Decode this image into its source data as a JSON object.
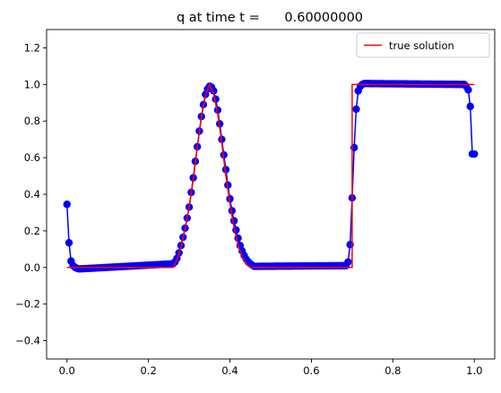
{
  "chart_data": {
    "type": "line",
    "title": "q at time t =      0.60000000",
    "xlabel": "",
    "ylabel": "",
    "xlim": [
      -0.05,
      1.05
    ],
    "ylim": [
      -0.5,
      1.3
    ],
    "grid": false,
    "legend_location": "upper right",
    "x_ticks": [
      "0.0",
      "0.2",
      "0.4",
      "0.6",
      "0.8",
      "1.0"
    ],
    "y_ticks": [
      "−0.4",
      "−0.2",
      "0.0",
      "0.2",
      "0.4",
      "0.6",
      "0.8",
      "1.0",
      "1.2"
    ],
    "x_tick_values": [
      0,
      0.2,
      0.4,
      0.6,
      0.8,
      1.0
    ],
    "y_tick_values": [
      -0.4,
      -0.2,
      0,
      0.2,
      0.4,
      0.6,
      0.8,
      1.0,
      1.2
    ],
    "series": [
      {
        "kind": "markers-line",
        "color": "#0000ff",
        "marker": "circle",
        "points": [
          [
            0.0,
            0.345
          ],
          [
            0.005,
            0.135
          ],
          [
            0.01,
            0.035
          ],
          [
            0.015,
            0.01
          ],
          [
            0.02,
            0.0
          ],
          [
            0.025,
            -0.005
          ],
          [
            0.03,
            -0.008
          ],
          [
            0.26,
            0.02
          ],
          [
            0.265,
            0.03
          ],
          [
            0.27,
            0.05
          ],
          [
            0.275,
            0.08
          ],
          [
            0.28,
            0.12
          ],
          [
            0.285,
            0.165
          ],
          [
            0.29,
            0.215
          ],
          [
            0.295,
            0.27
          ],
          [
            0.3,
            0.33
          ],
          [
            0.305,
            0.41
          ],
          [
            0.31,
            0.49
          ],
          [
            0.315,
            0.58
          ],
          [
            0.32,
            0.66
          ],
          [
            0.325,
            0.745
          ],
          [
            0.33,
            0.825
          ],
          [
            0.335,
            0.89
          ],
          [
            0.34,
            0.945
          ],
          [
            0.345,
            0.975
          ],
          [
            0.35,
            0.99
          ],
          [
            0.355,
            0.985
          ],
          [
            0.36,
            0.965
          ],
          [
            0.365,
            0.92
          ],
          [
            0.37,
            0.86
          ],
          [
            0.375,
            0.785
          ],
          [
            0.38,
            0.7
          ],
          [
            0.385,
            0.615
          ],
          [
            0.39,
            0.535
          ],
          [
            0.395,
            0.45
          ],
          [
            0.4,
            0.375
          ],
          [
            0.405,
            0.31
          ],
          [
            0.41,
            0.255
          ],
          [
            0.415,
            0.205
          ],
          [
            0.42,
            0.16
          ],
          [
            0.425,
            0.12
          ],
          [
            0.43,
            0.09
          ],
          [
            0.435,
            0.065
          ],
          [
            0.44,
            0.045
          ],
          [
            0.445,
            0.03
          ],
          [
            0.45,
            0.02
          ],
          [
            0.455,
            0.012
          ],
          [
            0.46,
            0.006
          ],
          [
            0.685,
            0.01
          ],
          [
            0.69,
            0.03
          ],
          [
            0.695,
            0.125
          ],
          [
            0.7,
            0.38
          ],
          [
            0.705,
            0.655
          ],
          [
            0.71,
            0.865
          ],
          [
            0.715,
            0.965
          ],
          [
            0.72,
            0.99
          ],
          [
            0.725,
            1.0
          ],
          [
            0.73,
            1.005
          ],
          [
            0.975,
            1.0
          ],
          [
            0.98,
            0.99
          ],
          [
            0.985,
            0.97
          ],
          [
            0.99,
            0.88
          ],
          [
            0.995,
            0.62
          ]
        ]
      },
      {
        "name": "true solution",
        "kind": "line",
        "color": "#ff0000",
        "points": [
          [
            0.0,
            0.0
          ],
          [
            0.26,
            0.0
          ],
          [
            0.27,
            0.04
          ],
          [
            0.28,
            0.11
          ],
          [
            0.29,
            0.21
          ],
          [
            0.3,
            0.33
          ],
          [
            0.31,
            0.48
          ],
          [
            0.32,
            0.66
          ],
          [
            0.33,
            0.82
          ],
          [
            0.34,
            0.94
          ],
          [
            0.35,
            1.0
          ],
          [
            0.36,
            0.95
          ],
          [
            0.37,
            0.84
          ],
          [
            0.38,
            0.68
          ],
          [
            0.39,
            0.5
          ],
          [
            0.4,
            0.35
          ],
          [
            0.41,
            0.22
          ],
          [
            0.42,
            0.12
          ],
          [
            0.43,
            0.06
          ],
          [
            0.44,
            0.02
          ],
          [
            0.45,
            0.0
          ],
          [
            0.7,
            0.0
          ],
          [
            0.7,
            1.0
          ],
          [
            1.0,
            1.0
          ]
        ]
      }
    ]
  }
}
